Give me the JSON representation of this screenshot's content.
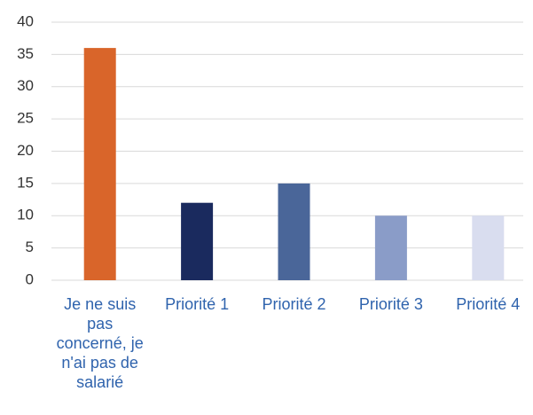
{
  "chart_data": {
    "type": "bar",
    "categories": [
      "Je ne suis pas concerné, je n'ai pas de salarié",
      "Priorité 1",
      "Priorité 2",
      "Priorité 3",
      "Priorité 4"
    ],
    "values": [
      36,
      12,
      15,
      10,
      10
    ],
    "colors": [
      "#d9652a",
      "#1a2a5e",
      "#4a6699",
      "#8a9cc8",
      "#d9ddef"
    ],
    "ylim": [
      0,
      40
    ],
    "yticks": [
      0,
      5,
      10,
      15,
      20,
      25,
      30,
      35,
      40
    ],
    "grid": true
  }
}
